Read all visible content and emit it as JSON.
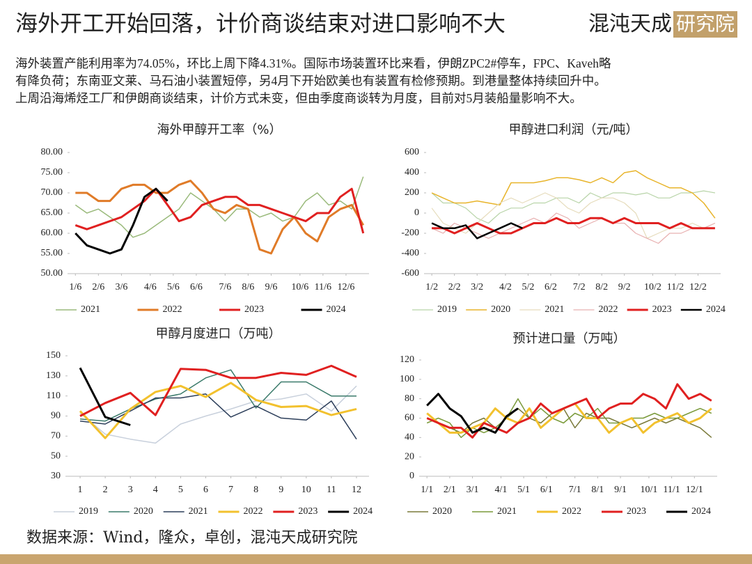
{
  "header": {
    "title": "海外开工开始回落，计价商谈结束对进口影响不大",
    "logo": [
      "混沌天成",
      "研究院"
    ]
  },
  "summary": [
    "海外装置产能利用率为74.05%，环比上周下降4.31%。国际市场装置环比来看，伊朗ZPC2#停车，FPC、Kaveh略",
    "有降负荷；东南亚文莱、马石油小装置短停，另4月下开始欧美也有装置有检修预期。到港量整体持续回升中。",
    "上周沿海烯烃工厂和伊朗商谈结束，计价方式未变，但由季度商谈转为月度，目前对5月装船量影响不大。"
  ],
  "chart_data": [
    {
      "type": "line",
      "title": "海外甲醇开工率（%）",
      "x": [
        1,
        3,
        5,
        7,
        9,
        11,
        13,
        15,
        17,
        19,
        21,
        23,
        25,
        27,
        29,
        31,
        33,
        35,
        37,
        39,
        41,
        43,
        45,
        47,
        49,
        51
      ],
      "xlim": [
        0,
        52
      ],
      "xticks": [
        {
          "value": 1,
          "label": "1/6"
        },
        {
          "value": 5,
          "label": "2/6"
        },
        {
          "value": 9,
          "label": "3/6"
        },
        {
          "value": 14,
          "label": "4/6"
        },
        {
          "value": 18,
          "label": "5/6"
        },
        {
          "value": 22,
          "label": "6/6"
        },
        {
          "value": 27,
          "label": "7/6"
        },
        {
          "value": 31,
          "label": "8/6"
        },
        {
          "value": 35,
          "label": "9/6"
        },
        {
          "value": 40,
          "label": "10/6"
        },
        {
          "value": 44,
          "label": "11/6"
        },
        {
          "value": 48,
          "label": "12/6"
        }
      ],
      "ylim": [
        50,
        80
      ],
      "yticks": [
        {
          "value": 50,
          "label": "50.00"
        },
        {
          "value": 55,
          "label": "55.00"
        },
        {
          "value": 60,
          "label": "60.00"
        },
        {
          "value": 65,
          "label": "65.00"
        },
        {
          "value": 70,
          "label": "70.00"
        },
        {
          "value": 75,
          "label": "75.00"
        },
        {
          "value": 80,
          "label": "80.00"
        }
      ],
      "series": [
        {
          "name": "2021",
          "color": "#9aba7b",
          "values": [
            67,
            65,
            66,
            64,
            62,
            59,
            60,
            62,
            64,
            66,
            70,
            68,
            66,
            63,
            66,
            66,
            64,
            65,
            63,
            64,
            68,
            70,
            67,
            68,
            66,
            74
          ]
        },
        {
          "name": "2022",
          "color": "#e07b28",
          "values": [
            70,
            70,
            68,
            68,
            71,
            72,
            72,
            70,
            70,
            72,
            73,
            70,
            66,
            65,
            67,
            66,
            56,
            55,
            61,
            64,
            60,
            58,
            64,
            66,
            67,
            62
          ]
        },
        {
          "name": "2023",
          "color": "#e02020",
          "values": [
            62,
            61,
            62,
            63,
            64,
            66,
            68,
            71,
            67,
            63,
            64,
            67,
            68,
            69,
            69,
            67,
            67,
            66,
            65,
            64,
            63,
            65,
            65,
            69,
            71,
            60
          ]
        },
        {
          "name": "2024",
          "color": "#000000",
          "values": [
            60,
            57,
            56,
            55,
            56,
            62,
            69,
            71,
            68,
            null,
            null,
            null,
            null,
            null,
            null,
            null,
            null,
            null,
            null,
            null,
            null,
            null,
            null,
            null,
            null,
            null
          ]
        }
      ]
    },
    {
      "type": "line",
      "title": "甲醇进口利润（元/吨）",
      "x": [
        1,
        3,
        5,
        7,
        9,
        11,
        13,
        15,
        17,
        19,
        21,
        23,
        25,
        27,
        29,
        31,
        33,
        35,
        37,
        39,
        41,
        43,
        45,
        47,
        49,
        51
      ],
      "xlim": [
        0,
        52
      ],
      "xticks": [
        {
          "value": 1,
          "label": "1/2"
        },
        {
          "value": 5,
          "label": "2/2"
        },
        {
          "value": 9,
          "label": "3/2"
        },
        {
          "value": 14,
          "label": "4/2"
        },
        {
          "value": 18,
          "label": "5/2"
        },
        {
          "value": 22,
          "label": "6/2"
        },
        {
          "value": 27,
          "label": "7/2"
        },
        {
          "value": 31,
          "label": "8/2"
        },
        {
          "value": 35,
          "label": "9/2"
        },
        {
          "value": 40,
          "label": "10/2"
        },
        {
          "value": 44,
          "label": "11/2"
        },
        {
          "value": 48,
          "label": "12/2"
        }
      ],
      "ylim": [
        -600,
        600
      ],
      "yticks": [
        -600,
        -400,
        -200,
        0,
        200,
        400,
        600
      ],
      "series": [
        {
          "name": "2019",
          "color": "#b8d4a8",
          "values": [
            200,
            100,
            100,
            50,
            -50,
            -100,
            0,
            50,
            50,
            100,
            100,
            150,
            150,
            100,
            200,
            150,
            200,
            200,
            180,
            200,
            150,
            150,
            200,
            200,
            220,
            200
          ]
        },
        {
          "name": "2020",
          "color": "#e8b42a",
          "values": [
            200,
            150,
            100,
            100,
            120,
            100,
            80,
            300,
            300,
            300,
            320,
            350,
            350,
            330,
            300,
            350,
            300,
            400,
            420,
            350,
            300,
            250,
            250,
            200,
            100,
            -50
          ]
        },
        {
          "name": "2021",
          "color": "#e6dcbc",
          "values": [
            50,
            -100,
            -150,
            -200,
            -100,
            0,
            100,
            150,
            100,
            150,
            200,
            150,
            50,
            0,
            100,
            150,
            150,
            100,
            0,
            -250,
            -200,
            -150,
            -150,
            -100,
            -150,
            -100
          ]
        },
        {
          "name": "2022",
          "color": "#e8b0b0",
          "values": [
            -150,
            -200,
            -100,
            -150,
            -200,
            -250,
            -200,
            -150,
            -100,
            -50,
            -100,
            0,
            -50,
            -150,
            -100,
            -50,
            -100,
            -100,
            -200,
            -250,
            -300,
            -200,
            -200,
            -150,
            -150,
            -100
          ]
        },
        {
          "name": "2023",
          "color": "#e02020",
          "values": [
            -150,
            -150,
            -200,
            -150,
            -100,
            -150,
            -200,
            -200,
            -150,
            -100,
            -100,
            -50,
            -100,
            -100,
            -50,
            -50,
            -100,
            -50,
            -100,
            -100,
            -100,
            -150,
            -100,
            -150,
            -150,
            -150
          ]
        },
        {
          "name": "2024",
          "color": "#000000",
          "values": [
            -100,
            -150,
            -150,
            -120,
            -250,
            -200,
            -150,
            -100,
            -150,
            null,
            null,
            null,
            null,
            null,
            null,
            null,
            null,
            null,
            null,
            null,
            null,
            null,
            null,
            null,
            null,
            null
          ]
        }
      ]
    },
    {
      "type": "line",
      "title": "甲醇月度进口（万吨）",
      "x": [
        1,
        2,
        3,
        4,
        5,
        6,
        7,
        8,
        9,
        10,
        11,
        12
      ],
      "xlim": [
        0.5,
        12.5
      ],
      "xticks": [
        1,
        2,
        3,
        4,
        5,
        6,
        7,
        8,
        9,
        10,
        11,
        12
      ],
      "ylim": [
        30,
        150
      ],
      "yticks": [
        30,
        50,
        70,
        90,
        110,
        130,
        150
      ],
      "series": [
        {
          "name": "2019",
          "color": "#c8d0dc",
          "values": [
            93,
            72,
            67,
            63,
            82,
            90,
            97,
            105,
            107,
            112,
            95,
            120
          ]
        },
        {
          "name": "2020",
          "color": "#3a7a6a",
          "values": [
            87,
            85,
            97,
            107,
            112,
            128,
            136,
            98,
            124,
            124,
            110,
            110
          ]
        },
        {
          "name": "2021",
          "color": "#2c3e5a",
          "values": [
            85,
            82,
            95,
            108,
            108,
            112,
            89,
            100,
            88,
            86,
            105,
            67
          ]
        },
        {
          "name": "2022",
          "color": "#f2c12e",
          "values": [
            95,
            68,
            97,
            114,
            120,
            109,
            123,
            106,
            99,
            100,
            91,
            97
          ]
        },
        {
          "name": "2023",
          "color": "#e02020",
          "values": [
            90,
            103,
            113,
            91,
            137,
            136,
            128,
            128,
            133,
            131,
            140,
            129
          ]
        },
        {
          "name": "2024",
          "color": "#000000",
          "values": [
            138,
            89,
            81,
            null,
            null,
            null,
            null,
            null,
            null,
            null,
            null,
            null
          ]
        }
      ]
    },
    {
      "type": "line",
      "title": "预计进口量（万吨）",
      "x": [
        1,
        3,
        5,
        7,
        9,
        11,
        13,
        15,
        17,
        19,
        21,
        23,
        25,
        27,
        29,
        31,
        33,
        35,
        37,
        39,
        41,
        43,
        45,
        47,
        49,
        51
      ],
      "xlim": [
        0,
        52
      ],
      "xticks": [
        {
          "value": 1,
          "label": "1/1"
        },
        {
          "value": 5,
          "label": "2/1"
        },
        {
          "value": 9,
          "label": "3/1"
        },
        {
          "value": 14,
          "label": "4/1"
        },
        {
          "value": 18,
          "label": "5/1"
        },
        {
          "value": 22,
          "label": "6/1"
        },
        {
          "value": 27,
          "label": "7/1"
        },
        {
          "value": 31,
          "label": "8/1"
        },
        {
          "value": 35,
          "label": "9/1"
        },
        {
          "value": 40,
          "label": "10/1"
        },
        {
          "value": 44,
          "label": "11/1"
        },
        {
          "value": 48,
          "label": "12/1"
        }
      ],
      "ylim": [
        0,
        120
      ],
      "yticks": [
        0,
        20,
        40,
        60,
        80,
        100,
        120
      ],
      "series": [
        {
          "name": "2020",
          "color": "#7a7a3a",
          "values": [
            60,
            55,
            50,
            45,
            55,
            60,
            50,
            60,
            70,
            60,
            55,
            65,
            70,
            50,
            65,
            60,
            60,
            55,
            50,
            55,
            60,
            55,
            60,
            55,
            50,
            40
          ]
        },
        {
          "name": "2021",
          "color": "#7a9a3a",
          "values": [
            55,
            60,
            55,
            40,
            50,
            45,
            50,
            60,
            80,
            60,
            70,
            60,
            55,
            65,
            60,
            70,
            55,
            55,
            60,
            60,
            65,
            60,
            60,
            65,
            70,
            65
          ]
        },
        {
          "name": "2022",
          "color": "#f2c12e",
          "values": [
            65,
            55,
            45,
            45,
            50,
            55,
            70,
            60,
            55,
            70,
            50,
            60,
            70,
            75,
            60,
            60,
            45,
            55,
            60,
            45,
            55,
            60,
            65,
            55,
            60,
            70
          ]
        },
        {
          "name": "2023",
          "color": "#e02020",
          "values": [
            60,
            55,
            50,
            50,
            40,
            55,
            50,
            45,
            55,
            60,
            75,
            65,
            70,
            75,
            80,
            60,
            70,
            75,
            75,
            85,
            80,
            70,
            95,
            80,
            85,
            78
          ]
        },
        {
          "name": "2024",
          "color": "#000000",
          "values": [
            73,
            85,
            70,
            62,
            45,
            50,
            45,
            62,
            70,
            null,
            null,
            null,
            null,
            null,
            null,
            null,
            null,
            null,
            null,
            null,
            null,
            null,
            null,
            null,
            null,
            null
          ]
        }
      ]
    }
  ],
  "source": "数据来源：Wind，隆众，卓创，混沌天成研究院"
}
